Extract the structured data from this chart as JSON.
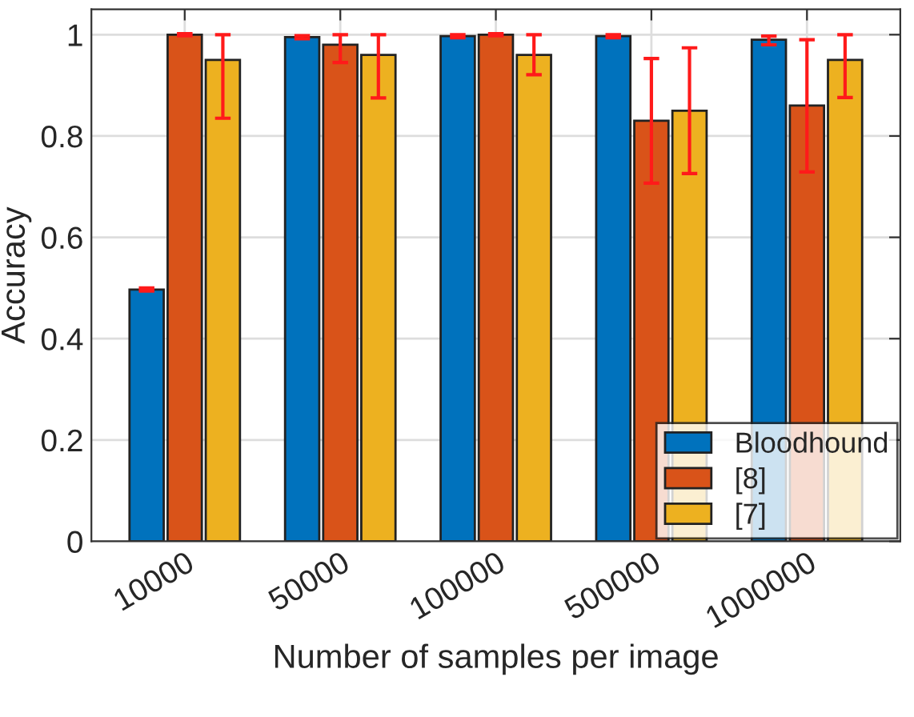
{
  "chart_data": {
    "type": "bar",
    "xlabel": "Number of samples per image",
    "ylabel": "Accuracy",
    "categories": [
      "10000",
      "50000",
      "100000",
      "500000",
      "1000000"
    ],
    "series": [
      {
        "name": "Bloodhound",
        "color": "#0072bd",
        "values": [
          0.497,
          0.995,
          0.997,
          0.997,
          0.99
        ],
        "errors": [
          0.003,
          0.003,
          0.003,
          0.003,
          [
            0.98,
            0.997
          ]
        ]
      },
      {
        "name": "[8]",
        "color": "#d95319",
        "values": [
          1.0,
          0.98,
          1.0,
          0.83,
          0.86
        ],
        "errors": [
          0.002,
          [
            0.945,
            1.0
          ],
          0.002,
          [
            0.707,
            0.953
          ],
          [
            0.729,
            0.99
          ]
        ]
      },
      {
        "name": "[7]",
        "color": "#edb120",
        "values": [
          0.95,
          0.96,
          0.96,
          0.85,
          0.95
        ],
        "errors": [
          [
            0.835,
            1.0
          ],
          [
            0.875,
            1.0
          ],
          [
            0.921,
            1.0
          ],
          [
            0.726,
            0.974
          ],
          [
            0.876,
            1.0
          ]
        ]
      }
    ],
    "ylim": [
      0,
      1.05
    ],
    "yticks": [
      0,
      0.2,
      0.4,
      0.6,
      0.8,
      1
    ],
    "grid": true,
    "legend": "bottom right"
  }
}
